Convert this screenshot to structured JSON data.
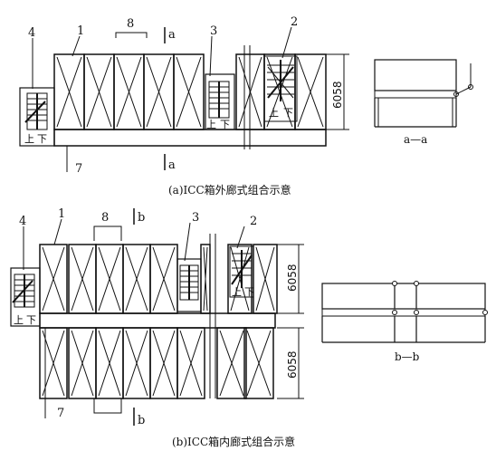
{
  "figure_a": {
    "caption": "(a)ICC箱外廊式组合示意",
    "section_mark": "a",
    "section_label": "a—a",
    "dimension": "6058",
    "callouts": [
      "1",
      "2",
      "3",
      "4",
      "7",
      "8"
    ],
    "stair_up": "上",
    "stair_down": "下"
  },
  "figure_b": {
    "caption": "(b)ICC箱内廊式组合示意",
    "section_mark": "b",
    "section_label": "b—b",
    "dimension_top": "6058",
    "dimension_bottom": "6058",
    "callouts": [
      "1",
      "2",
      "3",
      "4",
      "7",
      "8"
    ],
    "stair_up": "上",
    "stair_down": "下"
  }
}
